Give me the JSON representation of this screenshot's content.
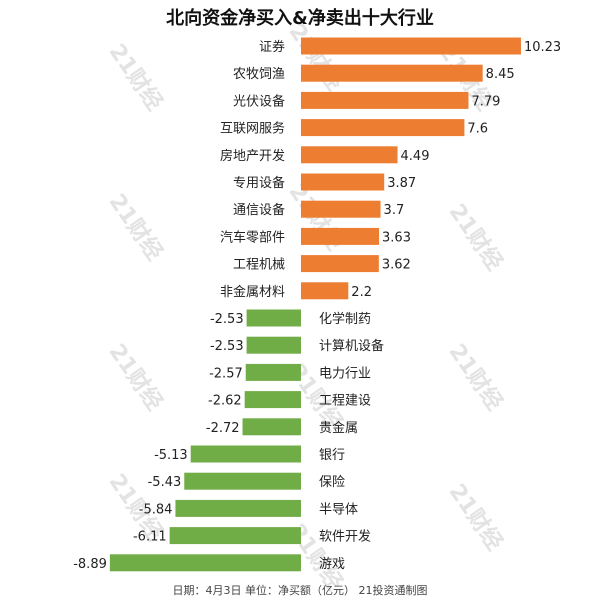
{
  "title": "北向资金净买入&净卖出十大行业",
  "footer": "日期：4月3日 单位：净买额（亿元） 21投资通制图",
  "watermark": "21财经",
  "colors": {
    "positive": "#ED7D31",
    "negative": "#70AD47"
  },
  "chart_data": {
    "type": "bar",
    "orientation": "horizontal",
    "categories": [
      "证券",
      "农牧饲渔",
      "光伏设备",
      "互联网服务",
      "房地产开发",
      "专用设备",
      "通信设备",
      "汽车零部件",
      "工程机械",
      "非金属材料",
      "化学制药",
      "计算机设备",
      "电力行业",
      "工程建设",
      "贵金属",
      "银行",
      "保险",
      "半导体",
      "软件开发",
      "游戏"
    ],
    "values": [
      10.23,
      8.45,
      7.79,
      7.6,
      4.49,
      3.87,
      3.7,
      3.63,
      3.62,
      2.2,
      -2.53,
      -2.53,
      -2.57,
      -2.62,
      -2.72,
      -5.13,
      -5.43,
      -5.84,
      -6.11,
      -8.89
    ],
    "value_labels": [
      "10.23",
      "8.45",
      "7.79",
      "7.6",
      "4.49",
      "3.87",
      "3.7",
      "3.63",
      "3.62",
      "2.2",
      "-2.53",
      "-2.53",
      "-2.57",
      "-2.62",
      "-2.72",
      "-5.13",
      "-5.43",
      "-5.84",
      "-6.11",
      "-8.89"
    ],
    "title": "北向资金净买入&净卖出十大行业",
    "xlim": [
      -8.89,
      10.23
    ],
    "grid": false,
    "legend": false
  }
}
